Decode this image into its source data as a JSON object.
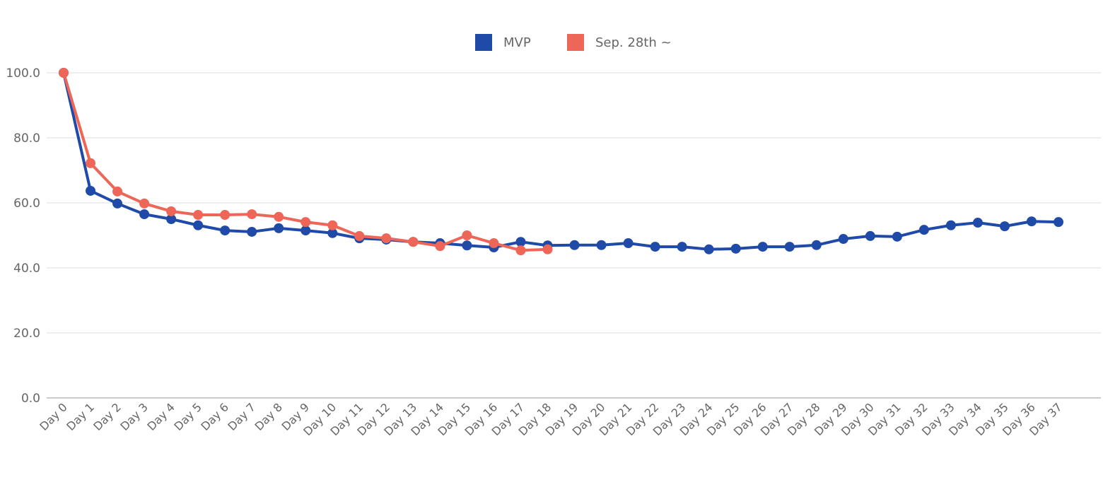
{
  "chart_data": {
    "type": "line",
    "categories": [
      "Day 0",
      "Day 1",
      "Day 2",
      "Day 3",
      "Day 4",
      "Day 5",
      "Day 6",
      "Day 7",
      "Day 8",
      "Day 9",
      "Day 10",
      "Day 11",
      "Day 12",
      "Day 13",
      "Day 14",
      "Day 15",
      "Day 16",
      "Day 17",
      "Day 18",
      "Day 19",
      "Day 20",
      "Day 21",
      "Day 22",
      "Day 23",
      "Day 24",
      "Day 25",
      "Day 26",
      "Day 27",
      "Day 28",
      "Day 29",
      "Day 30",
      "Day 31",
      "Day 32",
      "Day 33",
      "Day 34",
      "Day 35",
      "Day 36",
      "Day 37"
    ],
    "series": [
      {
        "name": "MVP",
        "color": "#1f4aa8",
        "values": [
          100,
          63.7,
          59.8,
          56.5,
          55.0,
          53.1,
          51.5,
          51.1,
          52.2,
          51.5,
          50.7,
          49.1,
          48.7,
          48.0,
          47.6,
          46.9,
          46.3,
          48.0,
          46.9,
          47.0,
          47.0,
          47.6,
          46.5,
          46.5,
          45.7,
          45.9,
          46.5,
          46.5,
          47.0,
          48.9,
          49.8,
          49.6,
          51.7,
          53.1,
          53.9,
          52.8,
          54.3,
          54.1
        ]
      },
      {
        "name": "Sep. 28th ~",
        "color": "#ee6658",
        "values": [
          100,
          72.2,
          63.5,
          59.8,
          57.4,
          56.3,
          56.3,
          56.5,
          55.7,
          54.1,
          53.1,
          49.8,
          49.1,
          48.0,
          46.7,
          50.0,
          47.6,
          45.4,
          45.7,
          null,
          null,
          null,
          null,
          null,
          null,
          null,
          null,
          null,
          null,
          null,
          null,
          null,
          null,
          null,
          null,
          null,
          null,
          null
        ]
      }
    ],
    "ylim": [
      0,
      100
    ],
    "yticks": [
      {
        "value": 0,
        "label": "0.0"
      },
      {
        "value": 20,
        "label": "20.0"
      },
      {
        "value": 40,
        "label": "40.0"
      },
      {
        "value": 60,
        "label": "60.0"
      },
      {
        "value": 80,
        "label": "80.0"
      },
      {
        "value": 100,
        "label": "100.0"
      }
    ],
    "grid": true,
    "legend": "top"
  }
}
